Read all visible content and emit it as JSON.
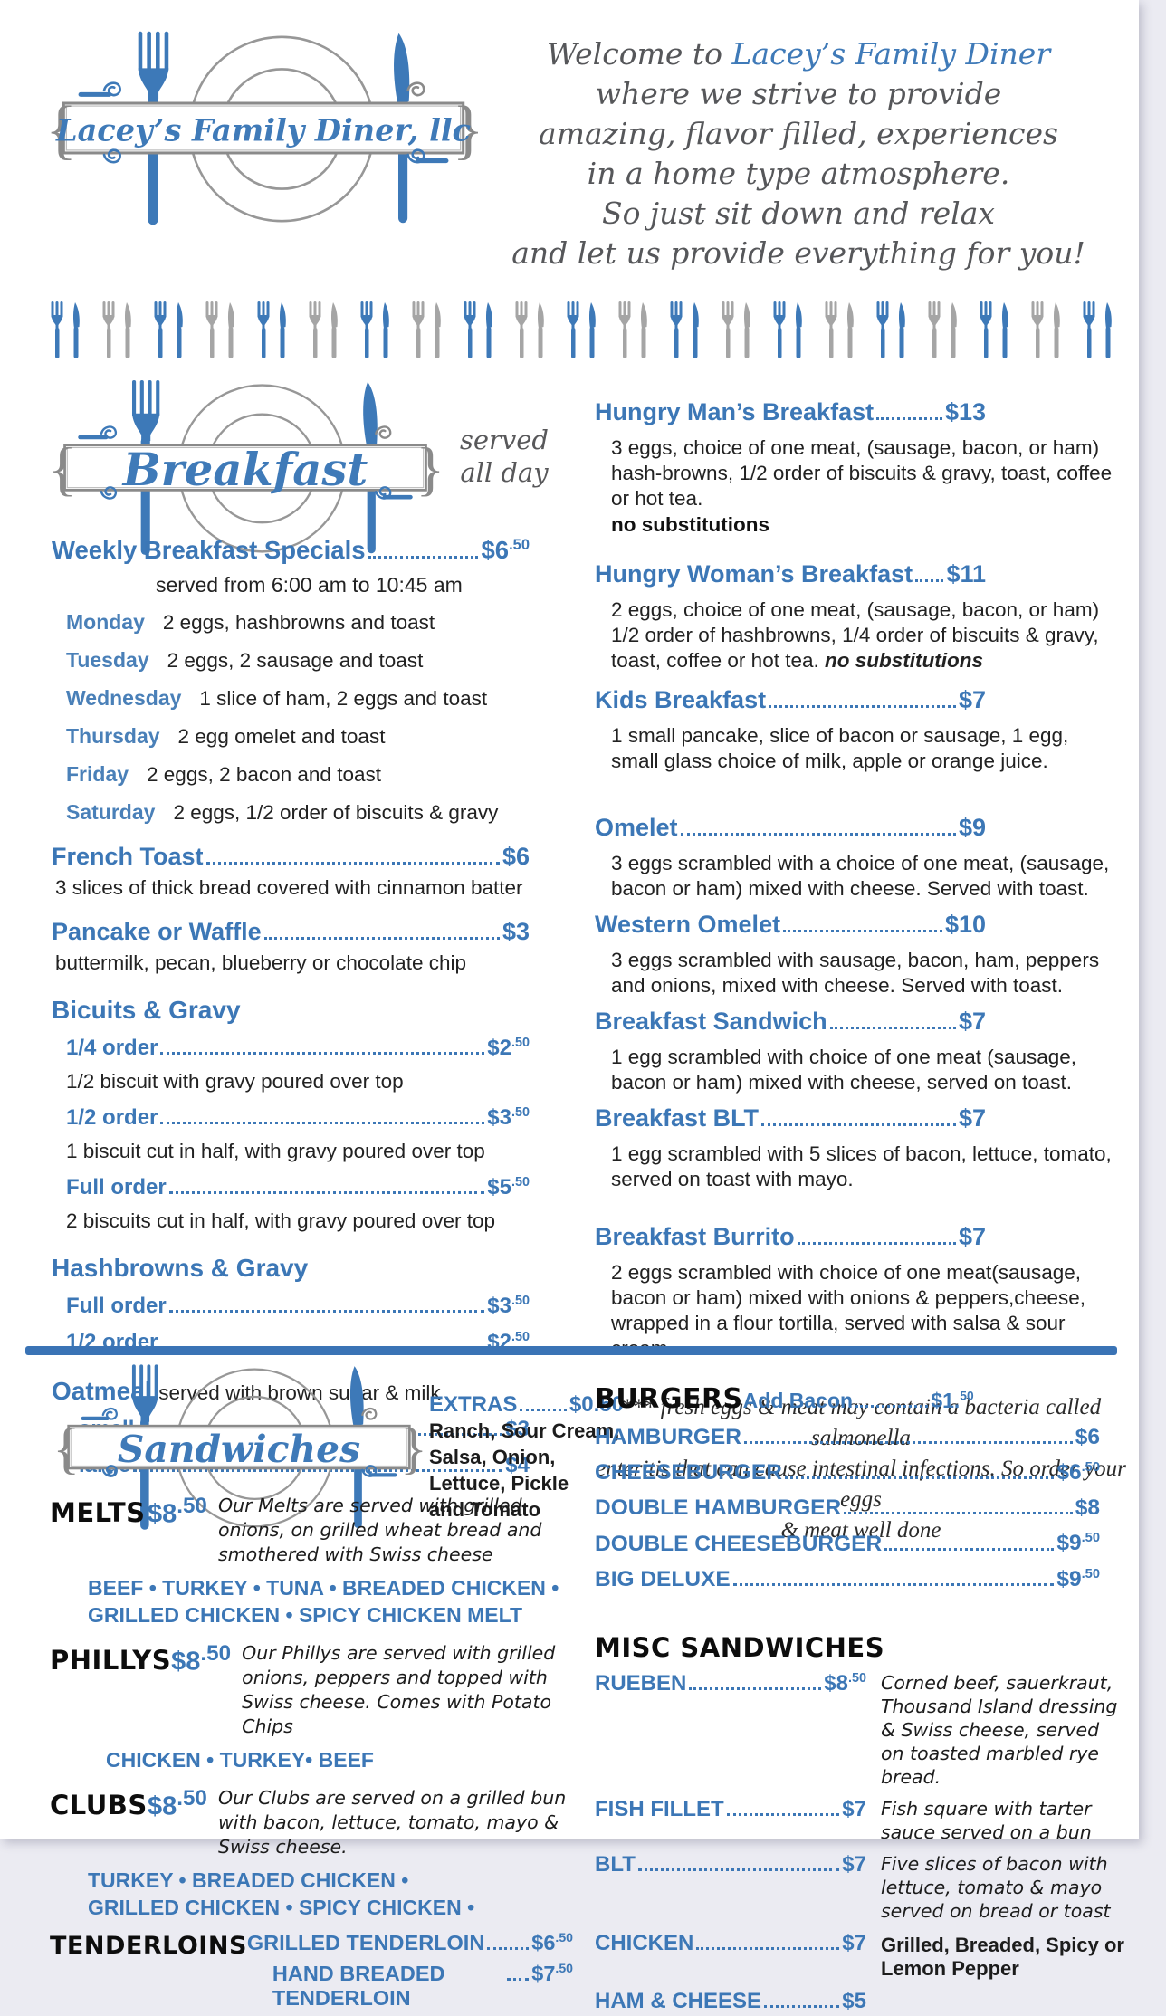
{
  "colors": {
    "accent_blue": "#3c77b6",
    "day_blue": "#4a80b8",
    "divider_blue": "#3a73b5",
    "icon_gray": "#a5a5a5",
    "script_gray": "#56575a",
    "text_dark": "#222222"
  },
  "logo": {
    "name": "Lacey’s Family Diner, llc"
  },
  "welcome": {
    "prefix": "Welcome to ",
    "brand": "Lacey’s Family Diner",
    "line2": "where we strive to provide",
    "line3": "amazing, flavor filled, experiences",
    "line4": "in a home type atmosphere.",
    "line5": "So just sit down and relax",
    "line6": "and let us provide everything for you!"
  },
  "cutlery_row": {
    "pairs": 21
  },
  "breakfast": {
    "banner_label": "Breakfast",
    "served_line1": "served",
    "served_line2": "all day",
    "weekly": {
      "title": "Weekly Breakfast Specials",
      "price": "$6",
      "cents": ".50",
      "subtitle": "served from 6:00 am to 10:45 am",
      "days": [
        {
          "day": "Monday",
          "desc": "2 eggs, hashbrowns and toast"
        },
        {
          "day": "Tuesday",
          "desc": "2 eggs, 2 sausage and toast"
        },
        {
          "day": "Wednesday",
          "desc": "1 slice of ham, 2 eggs and toast"
        },
        {
          "day": "Thursday",
          "desc": "2 egg omelet and toast"
        },
        {
          "day": "Friday",
          "desc": "2 eggs, 2 bacon and toast"
        },
        {
          "day": "Saturday",
          "desc": "2 eggs, 1/2 order of biscuits & gravy"
        }
      ]
    },
    "french_toast": {
      "name": "French Toast",
      "price": "$6",
      "cents": "",
      "desc": "3 slices of thick bread covered with cinnamon batter"
    },
    "pancake": {
      "name": "Pancake or Waffle",
      "price": "$3",
      "cents": "",
      "desc": "buttermilk, pecan, blueberry or chocolate chip"
    },
    "biscuits": {
      "heading": "Bicuits & Gravy",
      "quarter": {
        "name": "1/4 order",
        "price": "$2",
        "cents": ".50",
        "desc": "1/2 biscuit with gravy poured over top"
      },
      "half": {
        "name": "1/2 order",
        "price": "$3",
        "cents": ".50",
        "desc": "1 biscuit cut in half, with gravy poured over top"
      },
      "full": {
        "name": "Full order",
        "price": "$5",
        "cents": ".50",
        "desc": "2 biscuits cut in half, with gravy poured over top"
      }
    },
    "hashbrowns": {
      "heading": "Hashbrowns & Gravy",
      "full": {
        "name": "Full order",
        "price": "$3",
        "cents": ".50"
      },
      "half": {
        "name": "1/2 order",
        "price": "$2",
        "cents": ".50"
      }
    },
    "oatmeal": {
      "heading": "Oatmeal",
      "note": "served with brown sugar & milk",
      "small": {
        "name": "small",
        "price": "$3",
        "cents": ""
      },
      "large": {
        "name": "large",
        "price": "$4",
        "cents": ""
      }
    },
    "hungry_man": {
      "name": "Hungry Man’s Breakfast",
      "price": "$13",
      "cents": "",
      "desc": "3 eggs, choice of one meat, (sausage, bacon, or ham) hash-browns, 1/2 order of biscuits & gravy, toast, coffee or hot tea.",
      "no_subs": "no substitutions"
    },
    "hungry_woman": {
      "name": "Hungry Woman’s Breakfast",
      "price": "$11",
      "cents": "",
      "desc": "2 eggs, choice of one meat, (sausage, bacon, or ham) 1/2 order of hashbrowns, 1/4 order of biscuits & gravy, toast, coffee or hot tea. ",
      "no_subs_inline": "no substitutions"
    },
    "kids": {
      "name": "Kids Breakfast",
      "price": "$7",
      "cents": "",
      "desc": "1 small pancake, slice of bacon or sausage, 1 egg, small glass choice of milk, apple or orange juice."
    },
    "omelet": {
      "name": "Omelet",
      "price": "$9",
      "cents": "",
      "desc": "3 eggs scrambled with a choice of one meat, (sausage, bacon or ham)  mixed with cheese. Served with toast."
    },
    "western_omelet": {
      "name": "Western Omelet",
      "price": "$10",
      "cents": "",
      "desc": "3 eggs scrambled with sausage, bacon, ham, peppers and onions, mixed with cheese. Served with toast."
    },
    "breakfast_sandwich": {
      "name": "Breakfast Sandwich",
      "price": "$7",
      "cents": "",
      "desc": "1 egg scrambled with choice of one meat (sausage, bacon or ham) mixed with cheese, served on toast."
    },
    "breakfast_blt": {
      "name": "Breakfast BLT",
      "price": "$7",
      "cents": "",
      "desc": "1 egg scrambled with 5 slices of bacon, lettuce, tomato, served on toast with mayo."
    },
    "breakfast_burrito": {
      "name": "Breakfast Burrito",
      "price": "$7",
      "cents": "",
      "desc": "2 eggs scrambled with choice of one meat(sausage, bacon or ham) mixed with onions & peppers,cheese, wrapped in a flour tortilla, served with salsa & sour cream."
    },
    "disclaimer_line1": "*** fresh eggs & meat may contain a bacteria called salmonella",
    "disclaimer_line2": "enteritis that can cause intestinal infections.  So order your eggs",
    "disclaimer_line3": "& meat well done"
  },
  "sandwiches": {
    "banner_label": "Sandwiches",
    "extras": {
      "name": "EXTRAS",
      "price": "$0.50",
      "l1": "Ranch, Sour Cream,",
      "l2": "Salsa, Onion,",
      "l3": "Lettuce, Pickle",
      "l4": "and Tomato"
    },
    "melts": {
      "label": "MELTS",
      "price": "$8",
      "cents": ".50",
      "desc": "Our Melts are served with grilled onions, on grilled wheat bread and smothered with Swiss cheese",
      "v1": "BEEF • TURKEY • TUNA • BREADED CHICKEN •",
      "v2": "GRILLED CHICKEN • SPICY CHICKEN MELT"
    },
    "phillys": {
      "label": "PHILLYS",
      "price": "$8",
      "cents": ".50",
      "desc": "Our Phillys are served with grilled onions, peppers and topped with Swiss cheese. Comes with Potato Chips",
      "v1": "CHICKEN • TURKEY• BEEF",
      "v2": ""
    },
    "clubs": {
      "label": "CLUBS",
      "price": "$8",
      "cents": ".50",
      "desc": "Our Clubs are served on a grilled bun with bacon, lettuce, tomato, mayo & Swiss cheese.",
      "v1": "TURKEY • BREADED CHICKEN •",
      "v2": "GRILLED CHICKEN • SPICY CHICKEN •"
    },
    "tenderloins": {
      "label": "TENDERLOINS",
      "item1": {
        "name": "GRILLED TENDERLOIN",
        "price": "$6",
        "cents": ".50"
      },
      "item2": {
        "name": "HAND BREADED TENDERLOIN",
        "price": "$7",
        "cents": ".50"
      }
    },
    "burgers": {
      "label": "BURGERS",
      "add_bacon": {
        "name": "Add Bacon",
        "price": "$1.",
        "cents": "50"
      },
      "items": [
        {
          "name": "HAMBURGER",
          "price": "$6",
          "cents": ""
        },
        {
          "name": "CHEESEBURGER",
          "price": "$6",
          "cents": ".50"
        },
        {
          "name": "DOUBLE HAMBURGER",
          "price": "$8",
          "cents": ""
        },
        {
          "name": "DOUBLE CHEESEBURGER",
          "price": "$9",
          "cents": ".50"
        },
        {
          "name": "BIG DELUXE",
          "price": "$9",
          "cents": ".50"
        }
      ]
    },
    "misc": {
      "label": "MISC SANDWICHES",
      "rueben": {
        "name": "RUEBEN",
        "price": "$8",
        "cents": ".50",
        "desc": "Corned beef, sauerkraut, Thousand Island dressing & Swiss cheese, served on toasted marbled rye bread."
      },
      "fish": {
        "name": "FISH FILLET",
        "price": "$7",
        "cents": "",
        "desc": "Fish square with tarter sauce served on a bun"
      },
      "blt": {
        "name": "BLT",
        "price": "$7",
        "cents": "",
        "desc": "Five slices of bacon with lettuce, tomato & mayo served on bread or toast"
      },
      "chicken": {
        "name": "CHICKEN",
        "price": "$7",
        "cents": "",
        "desc": "Grilled, Breaded, Spicy or Lemon Pepper"
      },
      "ham_cheese": {
        "name": "HAM & CHEESE",
        "price": "$5",
        "cents": "",
        "desc": ""
      }
    }
  }
}
